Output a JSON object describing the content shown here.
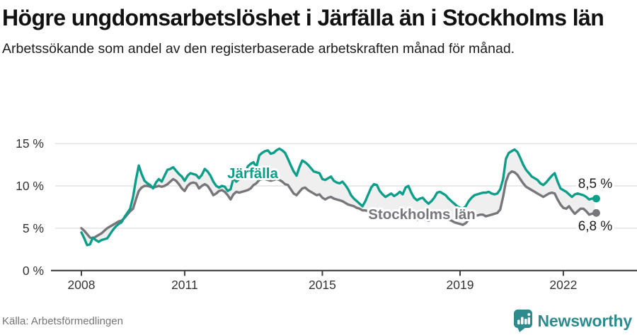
{
  "header": {
    "title": "Högre ungdomsarbetslöshet i Järfälla än i Stockholms län",
    "subtitle": "Arbetssökande som andel av den registerbaserade arbetskraften månad för månad."
  },
  "footer": {
    "source": "Källa: Arbetsförmedlingen",
    "brand_name": "Newsworthy"
  },
  "colors": {
    "jarfalla": "#0d9e8a",
    "stockholm": "#76767b",
    "band_fill": "#efefef",
    "grid": "#dcdcdc",
    "axis": "#3f3f3f",
    "tick_label": "#333333",
    "end_label_text": "#1b1b1b",
    "brand": "#2e8b8d"
  },
  "chart_data": {
    "type": "line",
    "x_unit": "month",
    "x_start": "2008-01",
    "x_end": "2022-12",
    "xticks": [
      2008,
      2011,
      2015,
      2019,
      2022
    ],
    "ylim": [
      0,
      15
    ],
    "ytick_values": [
      0,
      5,
      10,
      15
    ],
    "ytick_labels": [
      "0 %",
      "5 %",
      "10 %",
      "15 %"
    ],
    "grid": true,
    "legend_position": "inline-labels",
    "band_between_series": true,
    "series": [
      {
        "name": "Järfälla",
        "end_label": "8,5 %",
        "end_value": 8.5,
        "values": [
          4.5,
          3.8,
          3.0,
          3.1,
          3.9,
          3.6,
          3.4,
          3.6,
          3.7,
          3.8,
          4.3,
          4.8,
          5.2,
          5.5,
          5.7,
          6.3,
          6.8,
          7.3,
          8.7,
          10.7,
          12.4,
          11.4,
          10.6,
          10.3,
          10.1,
          9.7,
          10.4,
          10.8,
          10.5,
          11.2,
          11.9,
          12.0,
          12.2,
          11.8,
          11.4,
          11.1,
          10.6,
          11.2,
          11.5,
          11.4,
          11.3,
          10.9,
          11.3,
          12.0,
          11.7,
          11.2,
          10.5,
          10.0,
          9.8,
          10.0,
          9.9,
          9.4,
          9.6,
          10.9,
          10.5,
          10.8,
          11.0,
          11.2,
          12.3,
          12.6,
          12.8,
          12.2,
          13.6,
          13.9,
          14.1,
          14.2,
          13.8,
          13.9,
          14.2,
          14.4,
          14.2,
          13.9,
          13.2,
          12.4,
          11.7,
          11.2,
          12.2,
          13.0,
          12.8,
          12.5,
          12.1,
          11.7,
          11.6,
          11.5,
          10.8,
          10.7,
          10.9,
          11.1,
          10.6,
          10.4,
          10.3,
          10.5,
          10.1,
          9.6,
          8.9,
          8.5,
          8.2,
          7.9,
          7.6,
          8.2,
          9.0,
          9.8,
          10.2,
          10.1,
          9.4,
          9.0,
          8.7,
          8.9,
          9.1,
          8.8,
          9.0,
          9.3,
          9.0,
          9.8,
          10.0,
          9.2,
          8.6,
          8.3,
          8.5,
          8.6,
          8.2,
          7.9,
          8.2,
          8.6,
          9.2,
          9.3,
          9.1,
          8.9,
          8.5,
          8.2,
          7.9,
          7.6,
          7.4,
          7.3,
          7.6,
          8.2,
          8.6,
          8.9,
          9.0,
          9.1,
          9.2,
          9.2,
          9.3,
          9.1,
          9.0,
          9.1,
          9.6,
          10.8,
          13.2,
          13.9,
          14.1,
          14.3,
          14.0,
          13.3,
          12.5,
          11.9,
          11.5,
          11.1,
          10.9,
          10.7,
          10.3,
          10.1,
          10.4,
          10.8,
          11.2,
          11.5,
          10.5,
          9.7,
          9.5,
          9.3,
          9.0,
          8.7,
          9.0,
          9.1,
          9.0,
          8.9,
          8.7,
          8.4,
          8.5,
          8.5
        ]
      },
      {
        "name": "Stockholms län",
        "end_label": "6,8 %",
        "end_value": 6.8,
        "values": [
          5.0,
          4.7,
          4.3,
          3.9,
          3.8,
          4.0,
          4.2,
          4.4,
          4.7,
          5.0,
          5.2,
          5.4,
          5.6,
          5.8,
          5.9,
          6.2,
          6.6,
          7.0,
          7.3,
          8.4,
          9.4,
          9.8,
          10.0,
          10.0,
          9.9,
          9.8,
          9.9,
          10.0,
          9.9,
          10.0,
          10.2,
          10.5,
          10.8,
          10.6,
          10.2,
          9.7,
          9.4,
          10.0,
          10.3,
          10.4,
          10.3,
          9.7,
          10.0,
          10.2,
          10.0,
          9.5,
          8.9,
          9.1,
          9.4,
          9.5,
          9.3,
          8.9,
          8.4,
          9.0,
          9.3,
          9.2,
          9.3,
          9.4,
          9.5,
          9.7,
          10.1,
          10.3,
          10.7,
          10.8,
          10.8,
          10.7,
          10.6,
          10.7,
          10.8,
          10.7,
          10.5,
          10.2,
          10.1,
          9.6,
          9.1,
          8.9,
          9.3,
          9.7,
          9.8,
          9.5,
          9.3,
          9.1,
          8.9,
          9.0,
          8.6,
          8.4,
          8.6,
          8.7,
          8.5,
          8.4,
          8.3,
          8.2,
          8.0,
          7.8,
          7.7,
          7.6,
          7.4,
          7.3,
          7.1,
          7.1,
          7.0,
          7.0,
          6.9,
          6.9,
          6.8,
          6.7,
          6.6,
          6.6,
          6.7,
          6.6,
          6.5,
          6.6,
          6.5,
          6.6,
          6.5,
          6.3,
          6.1,
          6.0,
          6.1,
          6.2,
          6.0,
          5.9,
          6.0,
          6.1,
          6.2,
          6.3,
          6.2,
          6.1,
          6.0,
          5.9,
          5.7,
          5.6,
          5.5,
          5.4,
          5.6,
          6.0,
          6.3,
          6.5,
          6.5,
          6.6,
          6.6,
          6.4,
          6.5,
          6.6,
          6.7,
          6.8,
          7.2,
          8.7,
          10.5,
          11.4,
          11.7,
          11.6,
          11.3,
          10.8,
          10.3,
          9.9,
          9.7,
          9.5,
          9.3,
          9.1,
          8.9,
          8.7,
          8.9,
          9.1,
          9.2,
          9.1,
          8.4,
          7.8,
          7.4,
          7.3,
          7.6,
          7.1,
          6.7,
          7.0,
          7.3,
          7.3,
          7.0,
          6.6,
          6.7,
          6.8
        ]
      }
    ]
  }
}
